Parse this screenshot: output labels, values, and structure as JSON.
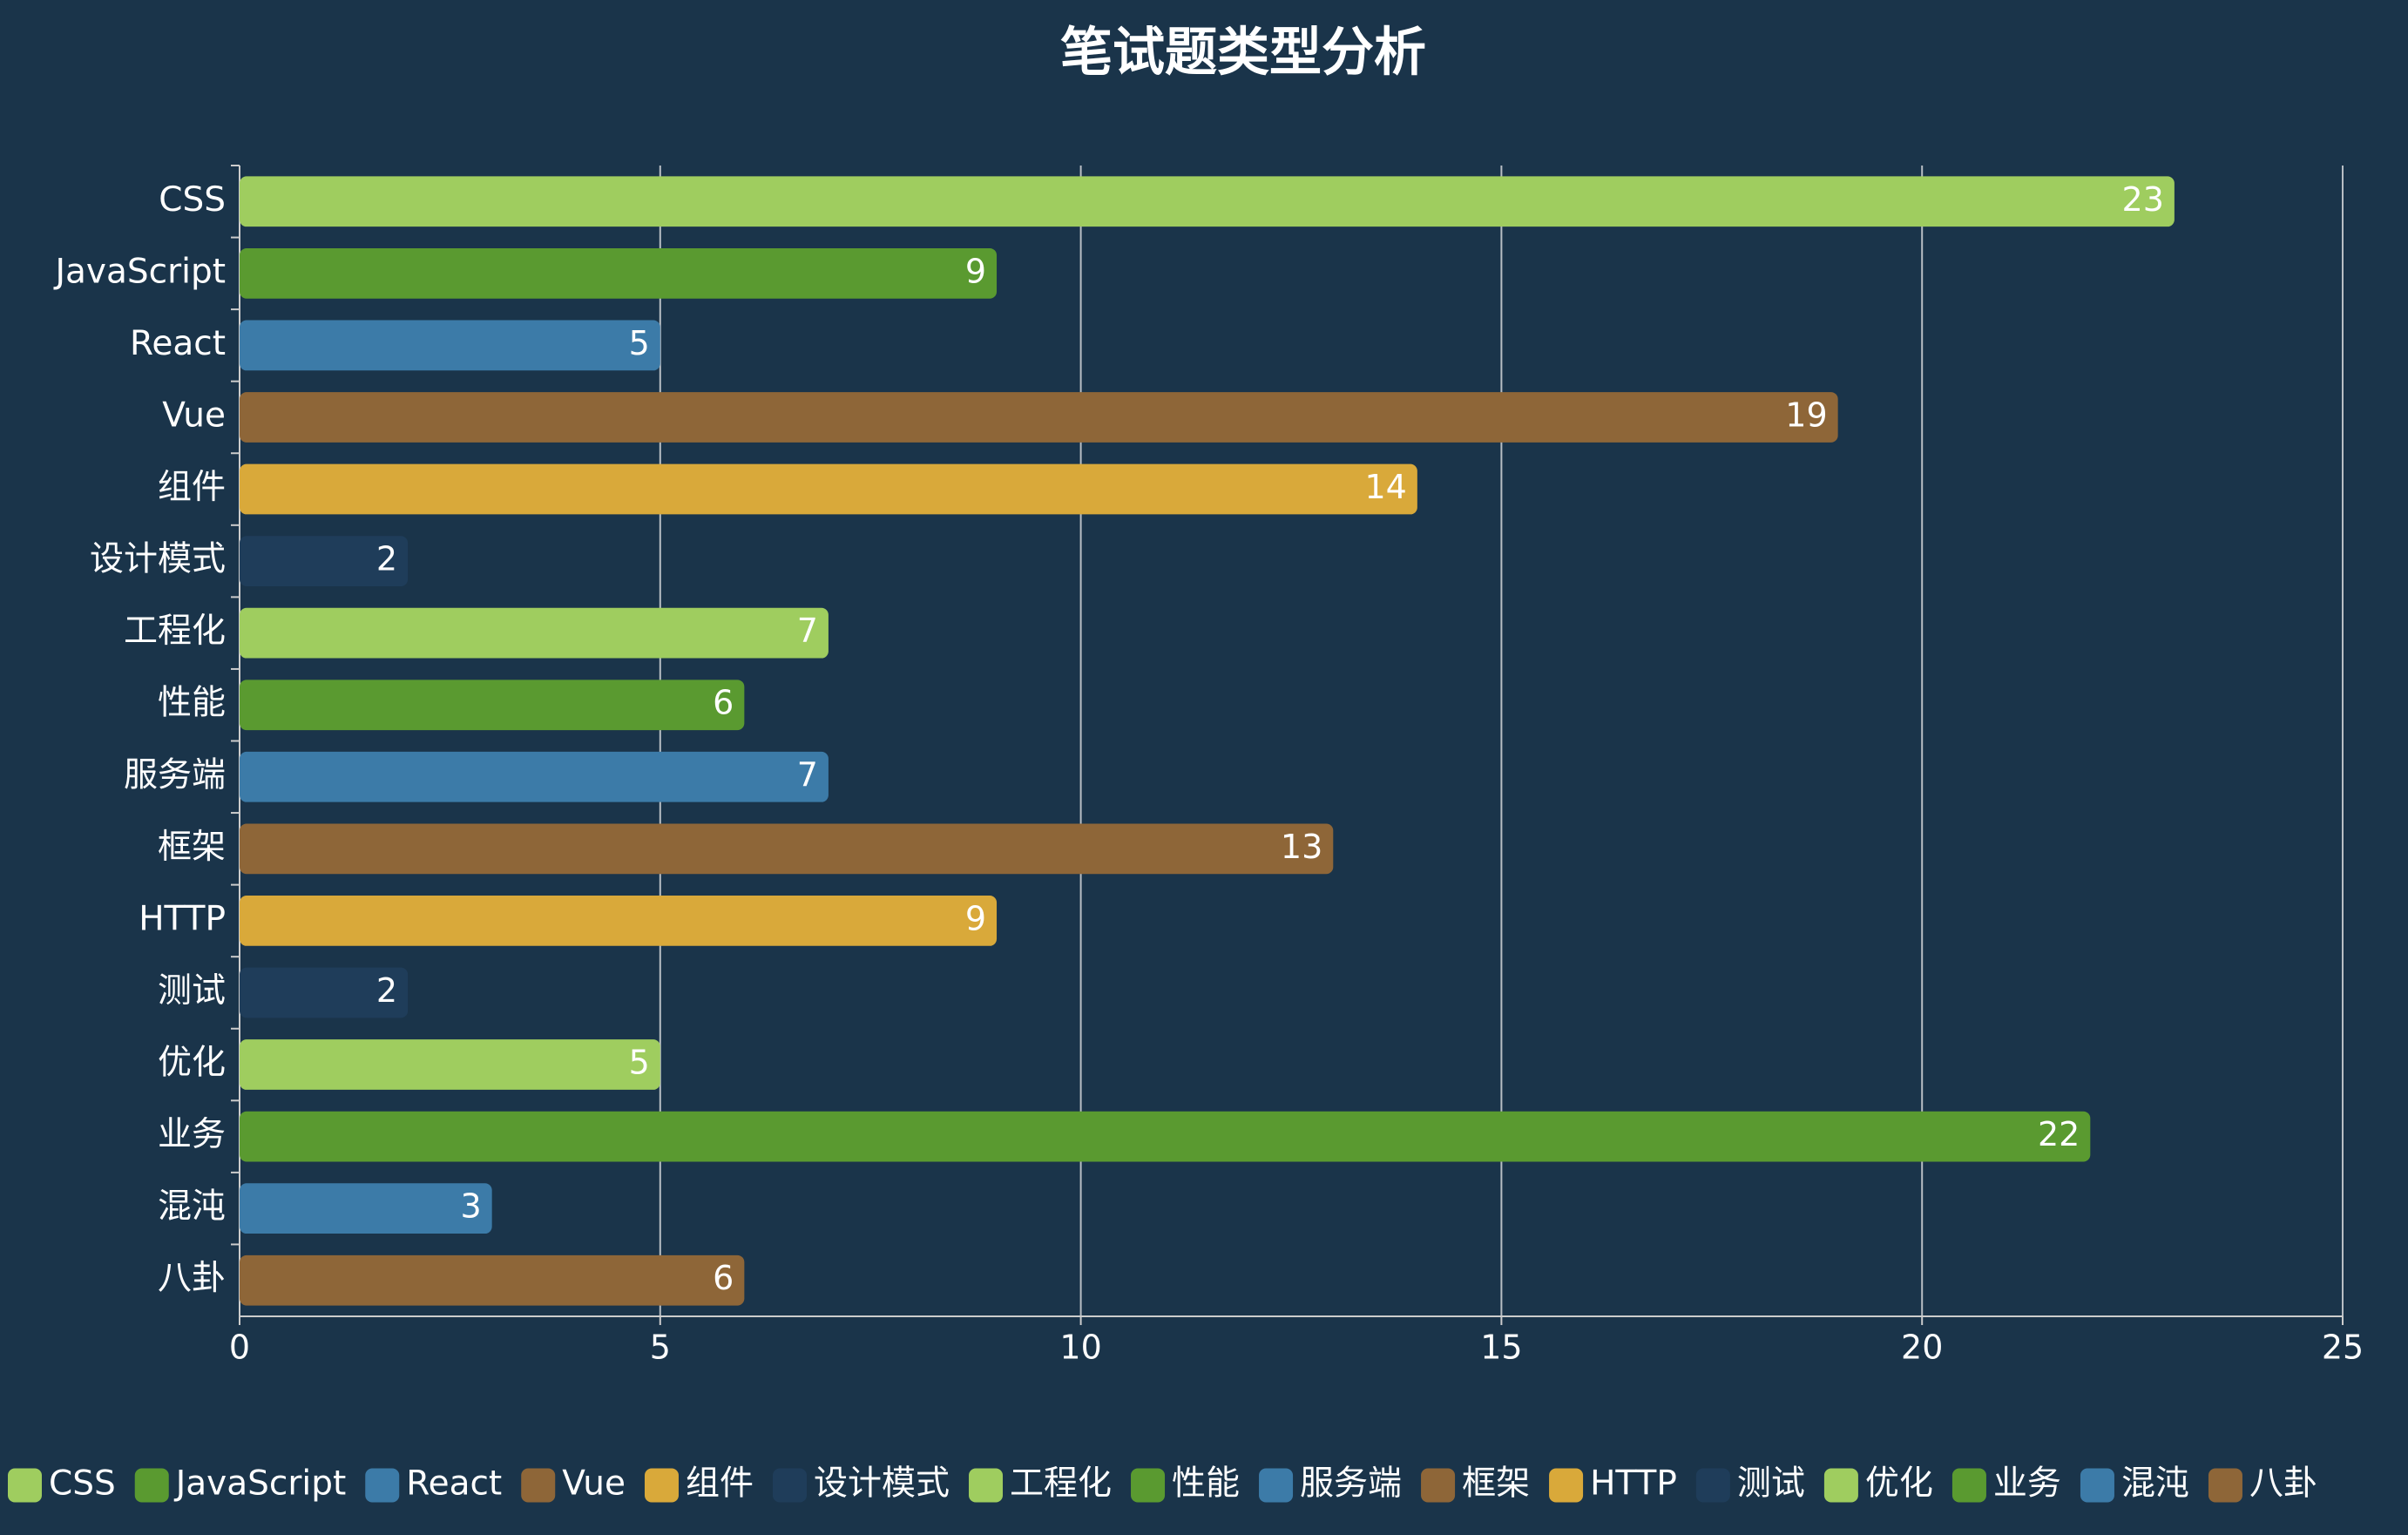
{
  "chart_data": {
    "type": "bar",
    "orientation": "horizontal",
    "title": "笔试题类型分析",
    "categories": [
      "CSS",
      "JavaScript",
      "React",
      "Vue",
      "组件",
      "设计模式",
      "工程化",
      "性能",
      "服务端",
      "框架",
      "HTTP",
      "测试",
      "优化",
      "业务",
      "混沌",
      "八卦"
    ],
    "values": [
      23,
      9,
      5,
      19,
      14,
      2,
      7,
      6,
      7,
      13,
      9,
      2,
      5,
      22,
      3,
      6
    ],
    "colors": [
      "#9fcd5f",
      "#5a9a30",
      "#3c7ba8",
      "#8e6638",
      "#d9a93a",
      "#1f3d5a",
      "#9fcd5f",
      "#5a9a30",
      "#3c7ba8",
      "#8e6638",
      "#d9a93a",
      "#1f3d5a",
      "#9fcd5f",
      "#5a9a30",
      "#3c7ba8",
      "#8e6638"
    ],
    "xlim": [
      0,
      25
    ],
    "xticks": [
      0,
      5,
      10,
      15,
      20,
      25
    ],
    "grid": true,
    "legend": "bottom"
  }
}
